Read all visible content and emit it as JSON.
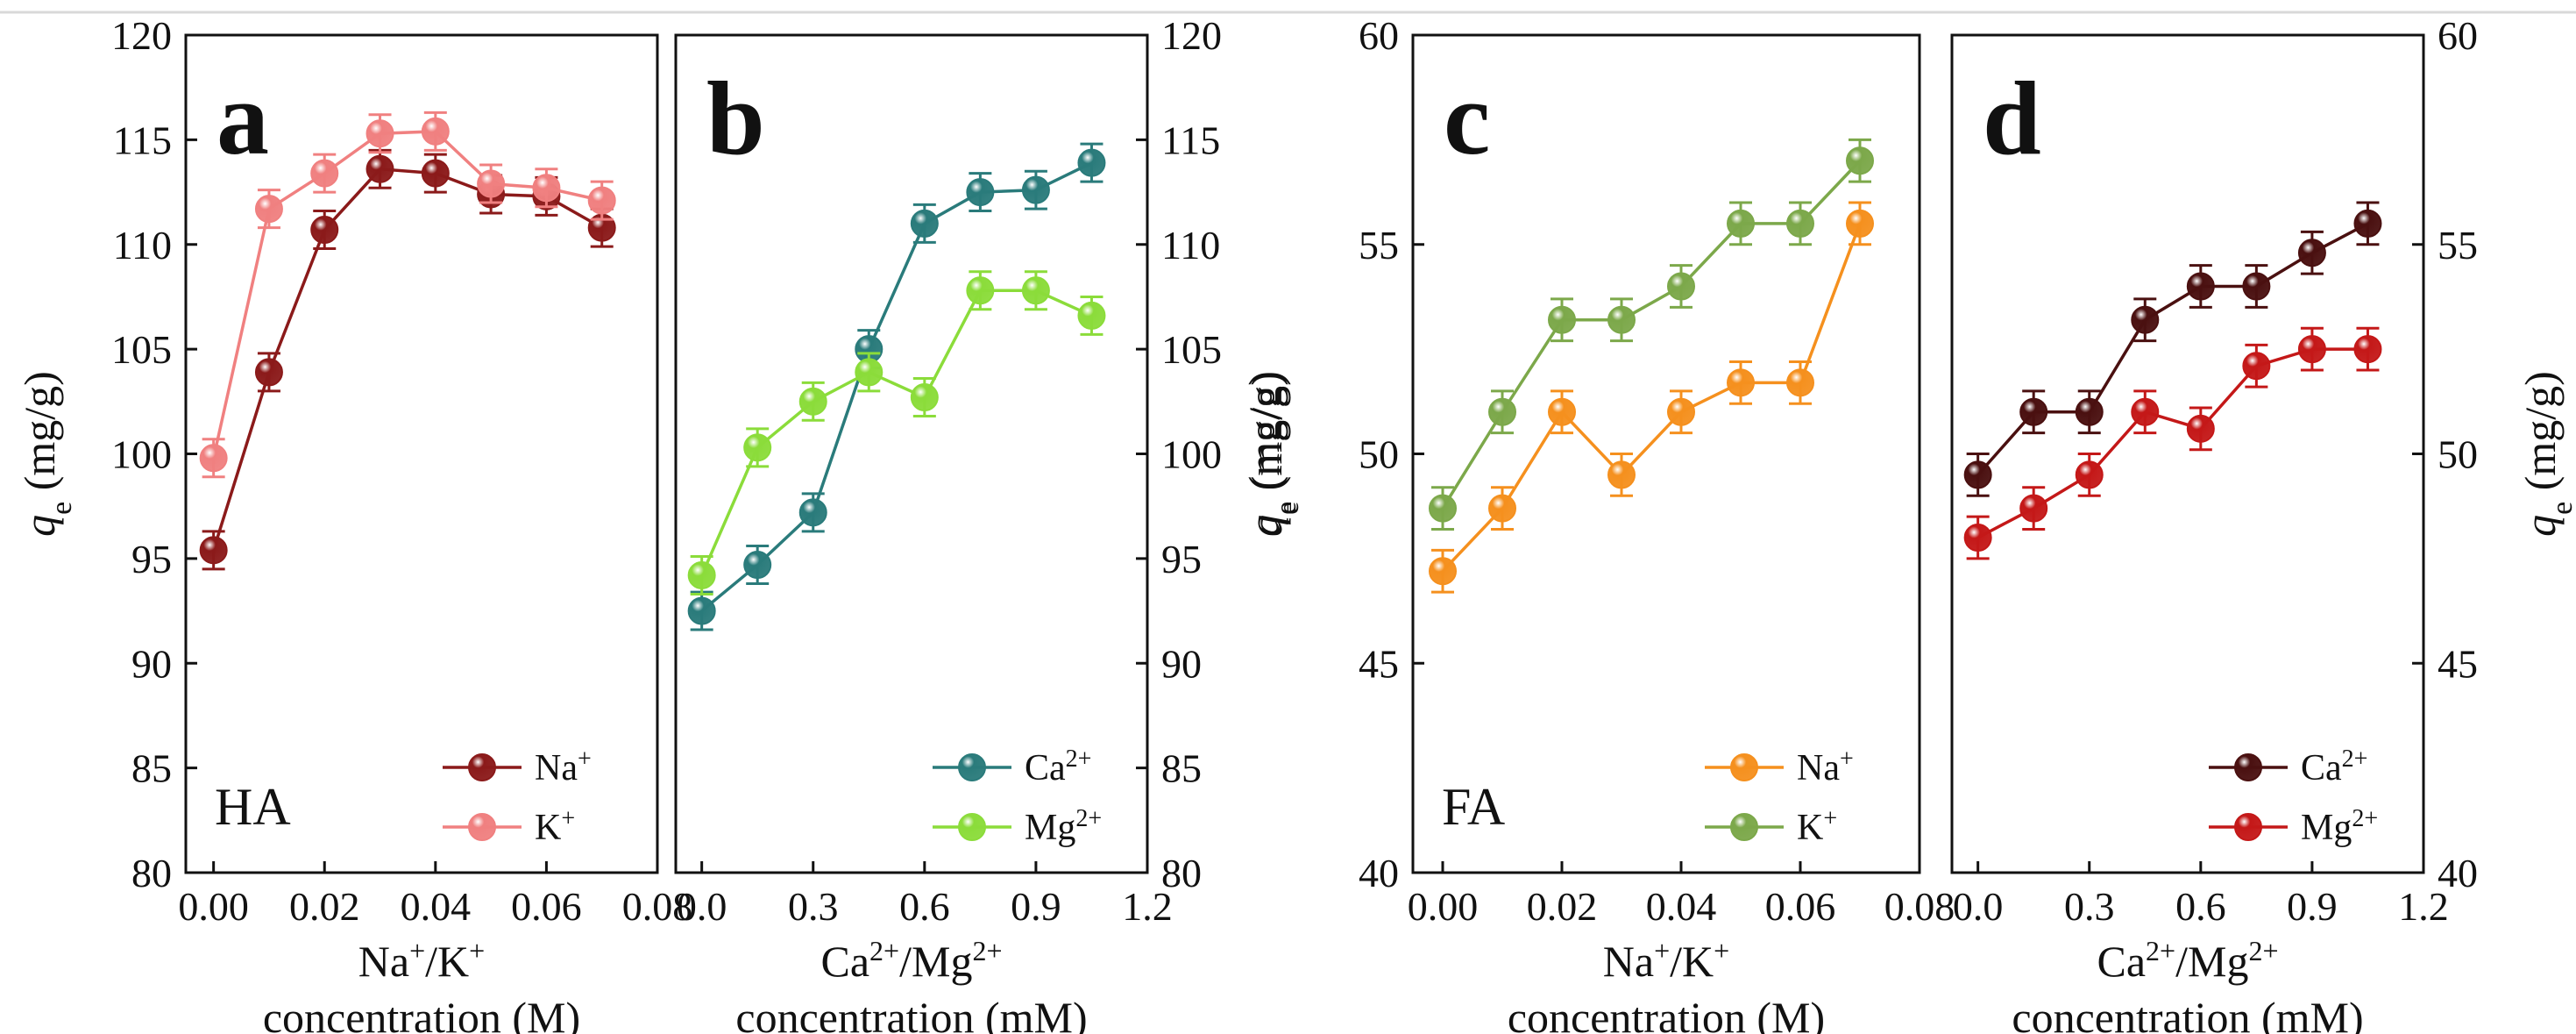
{
  "chart_data": [
    {
      "type": "line",
      "panel": "a",
      "sample": "HA",
      "x": [
        0.0,
        0.01,
        0.02,
        0.03,
        0.04,
        0.05,
        0.06,
        0.07
      ],
      "xlim": [
        -0.005,
        0.08
      ],
      "xticks": [
        0.0,
        0.02,
        0.04,
        0.06,
        0.08
      ],
      "xtick_labels": [
        "0.00",
        "0.02",
        "0.04",
        "0.06",
        "0.08"
      ],
      "ylim": [
        80,
        120
      ],
      "yticks": [
        80,
        85,
        90,
        95,
        100,
        105,
        110,
        115,
        120
      ],
      "y_axis_side": "left",
      "xlabel": {
        "ion1": "Na",
        "sup1": "+",
        "sep": "/",
        "ion2": "K",
        "sup2": "+",
        "line2": "concentration (M)"
      },
      "ylabel": {
        "q": "q",
        "sub": "e",
        "unit": " (mg/g)"
      },
      "legend_position": "bottom-right",
      "series": [
        {
          "name": "Na",
          "sup": "+",
          "color": "#8B1A1A",
          "values": [
            95.4,
            103.9,
            110.7,
            113.6,
            113.4,
            112.4,
            112.3,
            110.8
          ],
          "error": [
            0.9,
            0.9,
            0.9,
            0.9,
            0.9,
            0.9,
            0.9,
            0.9
          ]
        },
        {
          "name": "K",
          "sup": "+",
          "color": "#F08080",
          "values": [
            99.8,
            111.7,
            113.4,
            115.3,
            115.4,
            112.9,
            112.7,
            112.1
          ],
          "error": [
            0.9,
            0.9,
            0.9,
            0.9,
            0.9,
            0.9,
            0.9,
            0.9
          ]
        }
      ]
    },
    {
      "type": "line",
      "panel": "b",
      "sample": "",
      "x": [
        0.0,
        0.15,
        0.3,
        0.45,
        0.6,
        0.75,
        0.9,
        1.05
      ],
      "xlim": [
        -0.07,
        1.2
      ],
      "xticks": [
        0.0,
        0.3,
        0.6,
        0.9,
        1.2
      ],
      "xtick_labels": [
        "0.0",
        "0.3",
        "0.6",
        "0.9",
        "1.2"
      ],
      "ylim": [
        80,
        120
      ],
      "yticks": [
        80,
        85,
        90,
        95,
        100,
        105,
        110,
        115,
        120
      ],
      "y_axis_side": "right",
      "xlabel": {
        "ion1": "Ca",
        "sup1": "2+",
        "sep": "/",
        "ion2": "Mg",
        "sup2": "2+",
        "line2": "concentration (mM)"
      },
      "ylabel": {
        "q": "q",
        "sub": "e",
        "unit": " (mg/g)"
      },
      "legend_position": "bottom-right",
      "series": [
        {
          "name": "Ca",
          "sup": "2+",
          "color": "#2A7B7B",
          "values": [
            92.5,
            94.7,
            97.2,
            105.0,
            111.0,
            112.5,
            112.6,
            113.9
          ],
          "error": [
            0.9,
            0.9,
            0.9,
            0.9,
            0.9,
            0.9,
            0.9,
            0.9
          ]
        },
        {
          "name": "Mg",
          "sup": "2+",
          "color": "#8BDC3A",
          "values": [
            94.2,
            100.3,
            102.5,
            103.9,
            102.7,
            107.8,
            107.8,
            106.6
          ],
          "error": [
            0.9,
            0.9,
            0.9,
            0.9,
            0.9,
            0.9,
            0.9,
            0.9
          ]
        }
      ]
    },
    {
      "type": "line",
      "panel": "c",
      "sample": "FA",
      "x": [
        0.0,
        0.01,
        0.02,
        0.03,
        0.04,
        0.05,
        0.06,
        0.07
      ],
      "xlim": [
        -0.005,
        0.08
      ],
      "xticks": [
        0.0,
        0.02,
        0.04,
        0.06,
        0.08
      ],
      "xtick_labels": [
        "0.00",
        "0.02",
        "0.04",
        "0.06",
        "0.08"
      ],
      "ylim": [
        40,
        60
      ],
      "yticks": [
        40,
        45,
        50,
        55,
        60
      ],
      "y_axis_side": "left",
      "xlabel": {
        "ion1": "Na",
        "sup1": "+",
        "sep": "/",
        "ion2": "K",
        "sup2": "+",
        "line2": "concentration (M)"
      },
      "ylabel": {
        "q": "q",
        "sub": "e",
        "unit": " (mg/g)"
      },
      "legend_position": "bottom-right",
      "series": [
        {
          "name": "Na",
          "sup": "+",
          "color": "#F5901E",
          "values": [
            47.2,
            48.7,
            51.0,
            49.5,
            51.0,
            51.7,
            51.7,
            55.5
          ],
          "error": [
            0.5,
            0.5,
            0.5,
            0.5,
            0.5,
            0.5,
            0.5,
            0.5
          ]
        },
        {
          "name": "K",
          "sup": "+",
          "color": "#7CA84A",
          "values": [
            48.7,
            51.0,
            53.2,
            53.2,
            54.0,
            55.5,
            55.5,
            57.0
          ],
          "error": [
            0.5,
            0.5,
            0.5,
            0.5,
            0.5,
            0.5,
            0.5,
            0.5
          ]
        }
      ]
    },
    {
      "type": "line",
      "panel": "d",
      "sample": "",
      "x": [
        0.0,
        0.15,
        0.3,
        0.45,
        0.6,
        0.75,
        0.9,
        1.05
      ],
      "xlim": [
        -0.07,
        1.2
      ],
      "xticks": [
        0.0,
        0.3,
        0.6,
        0.9,
        1.2
      ],
      "xtick_labels": [
        "0.0",
        "0.3",
        "0.6",
        "0.9",
        "1.2"
      ],
      "ylim": [
        40,
        60
      ],
      "yticks": [
        40,
        45,
        50,
        55,
        60
      ],
      "y_axis_side": "right",
      "xlabel": {
        "ion1": "Ca",
        "sup1": "2+",
        "sep": "/",
        "ion2": "Mg",
        "sup2": "2+",
        "line2": "concentration (mM)"
      },
      "ylabel": {
        "q": "q",
        "sub": "e",
        "unit": " (mg/g)"
      },
      "legend_position": "bottom-right",
      "series": [
        {
          "name": "Ca",
          "sup": "2+",
          "color": "#4A1010",
          "values": [
            49.5,
            51.0,
            51.0,
            53.2,
            54.0,
            54.0,
            54.8,
            55.5
          ],
          "error": [
            0.5,
            0.5,
            0.5,
            0.5,
            0.5,
            0.5,
            0.5,
            0.5
          ]
        },
        {
          "name": "Mg",
          "sup": "2+",
          "color": "#C41818",
          "values": [
            48.0,
            48.7,
            49.5,
            51.0,
            50.6,
            52.1,
            52.5,
            52.5
          ],
          "error": [
            0.5,
            0.5,
            0.5,
            0.5,
            0.5,
            0.5,
            0.5,
            0.5
          ]
        }
      ]
    }
  ]
}
